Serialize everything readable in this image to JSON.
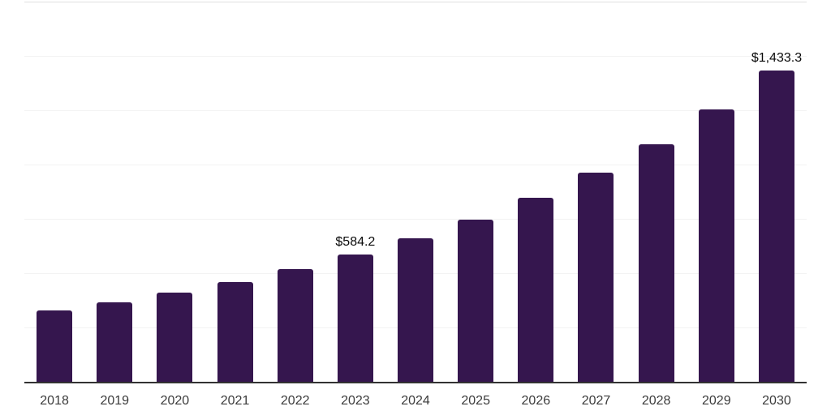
{
  "chart_data": {
    "type": "bar",
    "title": "",
    "xlabel": "",
    "ylabel": "",
    "categories": [
      "2018",
      "2019",
      "2020",
      "2021",
      "2022",
      "2023",
      "2024",
      "2025",
      "2026",
      "2027",
      "2028",
      "2029",
      "2030"
    ],
    "values": [
      328.6,
      365.4,
      410.5,
      459.3,
      518.8,
      584.2,
      660.7,
      746.9,
      847.4,
      963.1,
      1093.5,
      1254.2,
      1433.3
    ],
    "data_labels": [
      {
        "index": 5,
        "text": "$584.2"
      },
      {
        "index": 12,
        "text": "$1,433.3"
      }
    ],
    "ylim": [
      0,
      1750
    ],
    "gridline_step": 250,
    "grid": true,
    "legend": false,
    "colors": {
      "bar": "#35164E",
      "axis_line": "#333333",
      "gridline": "#f3f3f3",
      "top_gridline": "#e0e0e0",
      "tick_label": "#3b3b3b",
      "data_label": "#0a0a0a",
      "background": "#ffffff"
    }
  }
}
